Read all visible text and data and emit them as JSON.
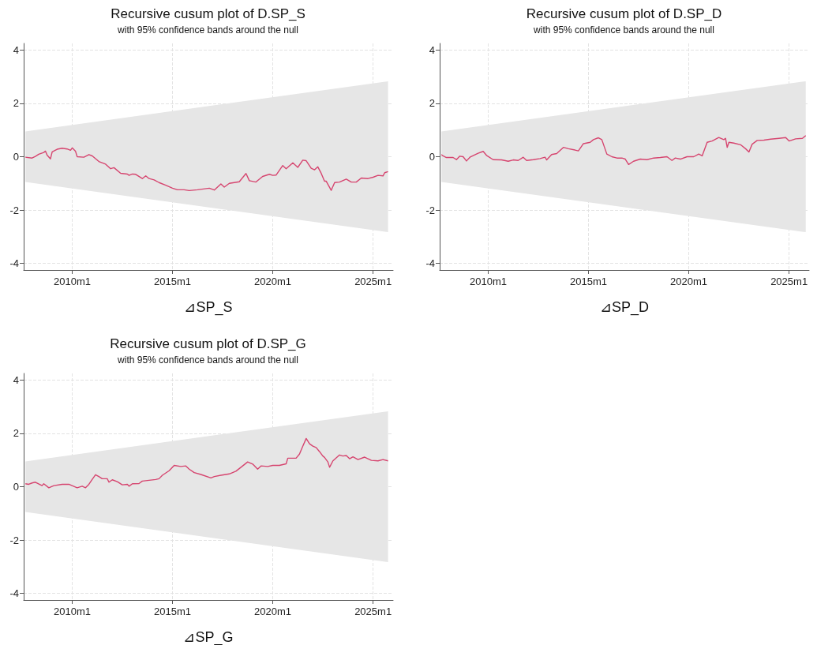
{
  "chart_data": [
    {
      "type": "line",
      "title": "Recursive cusum plot of D.SP_S",
      "subtitle": "with 95% confidence bands around the null",
      "xlabel": "⊿SP_S",
      "xlim": [
        "2007-08",
        "2026-01"
      ],
      "xticks": [
        {
          "value": "2010-01",
          "label": "2010m1"
        },
        {
          "value": "2015-01",
          "label": "2015m1"
        },
        {
          "value": "2020-01",
          "label": "2020m1"
        },
        {
          "value": "2025-01",
          "label": "2025m1"
        }
      ],
      "ylim": [
        -4.25,
        4.25
      ],
      "yticks": [
        -4,
        -2,
        0,
        2,
        4
      ],
      "grid": true,
      "series": [
        {
          "color": "#d6456f",
          "x": [
            "2007-09",
            "2008-01",
            "2008-03",
            "2008-05",
            "2008-08",
            "2008-09",
            "2008-10",
            "2008-12",
            "2009-01",
            "2009-04",
            "2009-07",
            "2009-10",
            "2009-12",
            "2010-01",
            "2010-03",
            "2010-04",
            "2010-08",
            "2010-11",
            "2011-01",
            "2011-05",
            "2011-09",
            "2011-12",
            "2012-02",
            "2012-06",
            "2012-10",
            "2012-11",
            "2013-01",
            "2013-03",
            "2013-07",
            "2013-09",
            "2013-11",
            "2014-02",
            "2014-05",
            "2014-09",
            "2015-01",
            "2015-04",
            "2015-08",
            "2015-11",
            "2016-04",
            "2016-11",
            "2017-02",
            "2017-06",
            "2017-08",
            "2017-11",
            "2018-05",
            "2018-09",
            "2018-11",
            "2019-03",
            "2019-07",
            "2019-11",
            "2020-01",
            "2020-03",
            "2020-07",
            "2020-09",
            "2021-01",
            "2021-04",
            "2021-07",
            "2021-09",
            "2021-12",
            "2022-02",
            "2022-04",
            "2022-06",
            "2022-08",
            "2022-09",
            "2022-12",
            "2023-02",
            "2023-05",
            "2023-09",
            "2023-12",
            "2024-03",
            "2024-06",
            "2024-10",
            "2025-01",
            "2025-04",
            "2025-07",
            "2025-08",
            "2025-10"
          ],
          "values": [
            -0.02,
            -0.05,
            0.01,
            0.09,
            0.16,
            0.21,
            0.06,
            -0.08,
            0.18,
            0.28,
            0.32,
            0.29,
            0.24,
            0.33,
            0.21,
            0.0,
            -0.02,
            0.08,
            0.03,
            -0.18,
            -0.28,
            -0.45,
            -0.41,
            -0.62,
            -0.65,
            -0.7,
            -0.65,
            -0.66,
            -0.82,
            -0.72,
            -0.82,
            -0.87,
            -0.97,
            -1.07,
            -1.18,
            -1.24,
            -1.24,
            -1.27,
            -1.24,
            -1.18,
            -1.25,
            -1.02,
            -1.14,
            -1.0,
            -0.94,
            -0.63,
            -0.9,
            -0.95,
            -0.74,
            -0.66,
            -0.7,
            -0.69,
            -0.33,
            -0.45,
            -0.23,
            -0.4,
            -0.13,
            -0.15,
            -0.43,
            -0.49,
            -0.38,
            -0.62,
            -0.92,
            -0.92,
            -1.26,
            -0.97,
            -0.95,
            -0.84,
            -0.95,
            -0.95,
            -0.8,
            -0.82,
            -0.77,
            -0.7,
            -0.72,
            -0.6,
            -0.56
          ],
          "lower": [
            -0.95,
            null,
            null,
            null,
            null,
            null,
            null,
            null,
            null,
            null,
            null,
            null,
            null,
            null,
            null,
            null,
            null,
            null,
            null,
            null,
            null,
            null,
            null,
            null,
            null,
            null,
            null,
            null,
            null,
            null,
            null,
            null,
            null,
            null,
            null,
            null,
            null,
            null,
            null,
            null,
            null,
            null,
            null,
            null,
            null,
            null,
            null,
            null,
            null,
            null,
            null,
            null,
            null,
            null,
            null,
            null,
            null,
            null,
            null,
            null,
            null,
            null,
            null,
            null,
            null,
            null,
            null,
            null,
            null,
            null,
            null,
            null,
            null,
            null,
            null,
            null,
            -2.83
          ],
          "upper": [
            0.95,
            null,
            null,
            null,
            null,
            null,
            null,
            null,
            null,
            null,
            null,
            null,
            null,
            null,
            null,
            null,
            null,
            null,
            null,
            null,
            null,
            null,
            null,
            null,
            null,
            null,
            null,
            null,
            null,
            null,
            null,
            null,
            null,
            null,
            null,
            null,
            null,
            null,
            null,
            null,
            null,
            null,
            null,
            null,
            null,
            null,
            null,
            null,
            null,
            null,
            null,
            null,
            null,
            null,
            null,
            null,
            null,
            null,
            null,
            null,
            null,
            null,
            null,
            null,
            null,
            null,
            null,
            null,
            null,
            null,
            null,
            null,
            null,
            null,
            null,
            null,
            2.83
          ]
        }
      ]
    },
    {
      "type": "line",
      "title": "Recursive cusum plot of D.SP_D",
      "subtitle": "with 95% confidence bands around the null",
      "xlabel": "⊿SP_D",
      "xlim": [
        "2007-08",
        "2026-01"
      ],
      "xticks": [
        {
          "value": "2010-01",
          "label": "2010m1"
        },
        {
          "value": "2015-01",
          "label": "2015m1"
        },
        {
          "value": "2020-01",
          "label": "2020m1"
        },
        {
          "value": "2025-01",
          "label": "2025m1"
        }
      ],
      "ylim": [
        -4.25,
        4.25
      ],
      "yticks": [
        -4,
        -2,
        0,
        2,
        4
      ],
      "grid": true,
      "series": [
        {
          "color": "#d6456f",
          "x": [
            "2007-09",
            "2007-10",
            "2007-12",
            "2008-04",
            "2008-06",
            "2008-08",
            "2008-10",
            "2008-12",
            "2009-02",
            "2009-04",
            "2009-07",
            "2009-10",
            "2009-12",
            "2010-04",
            "2010-09",
            "2011-01",
            "2011-04",
            "2011-07",
            "2011-10",
            "2011-12",
            "2012-04",
            "2012-08",
            "2012-11",
            "2012-12",
            "2013-03",
            "2013-06",
            "2013-10",
            "2014-01",
            "2014-05",
            "2014-07",
            "2014-10",
            "2015-02",
            "2015-04",
            "2015-07",
            "2015-09",
            "2015-12",
            "2016-03",
            "2016-06",
            "2016-09",
            "2016-11",
            "2017-01",
            "2017-04",
            "2017-08",
            "2017-12",
            "2018-04",
            "2018-08",
            "2018-12",
            "2019-03",
            "2019-05",
            "2019-08",
            "2019-12",
            "2020-04",
            "2020-07",
            "2020-09",
            "2020-12",
            "2021-03",
            "2021-07",
            "2021-10",
            "2021-11",
            "2021-12",
            "2022-01",
            "2022-04",
            "2022-08",
            "2022-11",
            "2023-01",
            "2023-03",
            "2023-06",
            "2023-10",
            "2024-02",
            "2024-07",
            "2024-11",
            "2025-01",
            "2025-05",
            "2025-09",
            "2025-11"
          ],
          "values": [
            0.08,
            0.03,
            -0.03,
            -0.03,
            -0.11,
            0.02,
            0.0,
            -0.16,
            -0.02,
            0.04,
            0.13,
            0.2,
            0.05,
            -0.11,
            -0.12,
            -0.17,
            -0.12,
            -0.14,
            -0.02,
            -0.14,
            -0.11,
            -0.07,
            -0.02,
            -0.12,
            0.08,
            0.12,
            0.35,
            0.3,
            0.25,
            0.22,
            0.49,
            0.54,
            0.64,
            0.71,
            0.64,
            0.1,
            0.0,
            -0.05,
            -0.05,
            -0.09,
            -0.29,
            -0.17,
            -0.09,
            -0.11,
            -0.05,
            -0.03,
            0.0,
            -0.14,
            -0.05,
            -0.09,
            0.0,
            0.0,
            0.1,
            0.03,
            0.54,
            0.59,
            0.72,
            0.64,
            0.69,
            0.35,
            0.54,
            0.51,
            0.45,
            0.3,
            0.18,
            0.47,
            0.61,
            0.62,
            0.66,
            0.69,
            0.72,
            0.59,
            0.67,
            0.69,
            0.79
          ],
          "lower": [
            -0.95,
            null,
            null,
            null,
            null,
            null,
            null,
            null,
            null,
            null,
            null,
            null,
            null,
            null,
            null,
            null,
            null,
            null,
            null,
            null,
            null,
            null,
            null,
            null,
            null,
            null,
            null,
            null,
            null,
            null,
            null,
            null,
            null,
            null,
            null,
            null,
            null,
            null,
            null,
            null,
            null,
            null,
            null,
            null,
            null,
            null,
            null,
            null,
            null,
            null,
            null,
            null,
            null,
            null,
            null,
            null,
            null,
            null,
            null,
            null,
            null,
            null,
            null,
            null,
            null,
            null,
            null,
            null,
            null,
            null,
            null,
            null,
            null,
            null,
            -2.83
          ],
          "upper": [
            0.95,
            null,
            null,
            null,
            null,
            null,
            null,
            null,
            null,
            null,
            null,
            null,
            null,
            null,
            null,
            null,
            null,
            null,
            null,
            null,
            null,
            null,
            null,
            null,
            null,
            null,
            null,
            null,
            null,
            null,
            null,
            null,
            null,
            null,
            null,
            null,
            null,
            null,
            null,
            null,
            null,
            null,
            null,
            null,
            null,
            null,
            null,
            null,
            null,
            null,
            null,
            null,
            null,
            null,
            null,
            null,
            null,
            null,
            null,
            null,
            null,
            null,
            null,
            null,
            null,
            null,
            null,
            null,
            null,
            null,
            null,
            null,
            null,
            null,
            2.83
          ]
        }
      ]
    },
    {
      "type": "line",
      "title": "Recursive cusum plot of D.SP_G",
      "subtitle": "with 95% confidence bands around the null",
      "xlabel": "⊿SP_G",
      "xlim": [
        "2007-08",
        "2026-01"
      ],
      "xticks": [
        {
          "value": "2010-01",
          "label": "2010m1"
        },
        {
          "value": "2015-01",
          "label": "2015m1"
        },
        {
          "value": "2020-01",
          "label": "2020m1"
        },
        {
          "value": "2025-01",
          "label": "2025m1"
        }
      ],
      "ylim": [
        -4.25,
        4.25
      ],
      "yticks": [
        -4,
        -2,
        0,
        2,
        4
      ],
      "grid": true,
      "series": [
        {
          "color": "#d6456f",
          "x": [
            "2007-09",
            "2007-11",
            "2008-01",
            "2008-03",
            "2008-07",
            "2008-08",
            "2008-11",
            "2009-02",
            "2009-07",
            "2009-11",
            "2010-02",
            "2010-04",
            "2010-07",
            "2010-09",
            "2010-11",
            "2011-01",
            "2011-03",
            "2011-05",
            "2011-07",
            "2011-10",
            "2011-11",
            "2012-01",
            "2012-04",
            "2012-07",
            "2012-10",
            "2012-11",
            "2013-01",
            "2013-05",
            "2013-07",
            "2013-11",
            "2014-03",
            "2014-05",
            "2014-07",
            "2014-11",
            "2015-02",
            "2015-06",
            "2015-09",
            "2015-11",
            "2016-02",
            "2016-06",
            "2016-12",
            "2017-02",
            "2017-06",
            "2017-11",
            "2018-03",
            "2018-06",
            "2018-10",
            "2019-01",
            "2019-04",
            "2019-06",
            "2019-10",
            "2020-01",
            "2020-05",
            "2020-09",
            "2020-10",
            "2021-03",
            "2021-05",
            "2021-07",
            "2021-09",
            "2021-11",
            "2022-01",
            "2022-03",
            "2022-05",
            "2022-07",
            "2022-08",
            "2022-10",
            "2022-11",
            "2023-01",
            "2023-05",
            "2023-07",
            "2023-09",
            "2023-11",
            "2024-01",
            "2024-04",
            "2024-08",
            "2024-12",
            "2025-04",
            "2025-07",
            "2025-10"
          ],
          "values": [
            0.11,
            0.09,
            0.14,
            0.17,
            0.04,
            0.11,
            -0.04,
            0.04,
            0.09,
            0.09,
            0.01,
            -0.04,
            0.02,
            -0.04,
            0.09,
            0.28,
            0.45,
            0.38,
            0.3,
            0.3,
            0.17,
            0.26,
            0.19,
            0.07,
            0.09,
            0.02,
            0.11,
            0.12,
            0.21,
            0.24,
            0.27,
            0.3,
            0.43,
            0.6,
            0.8,
            0.76,
            0.78,
            0.66,
            0.53,
            0.46,
            0.33,
            0.38,
            0.43,
            0.48,
            0.58,
            0.73,
            0.93,
            0.85,
            0.66,
            0.78,
            0.76,
            0.8,
            0.8,
            0.86,
            1.07,
            1.07,
            1.22,
            1.52,
            1.81,
            1.61,
            1.52,
            1.47,
            1.32,
            1.15,
            1.1,
            0.93,
            0.73,
            0.97,
            1.19,
            1.15,
            1.17,
            1.05,
            1.12,
            1.02,
            1.11,
            0.99,
            0.97,
            1.02,
            0.97
          ],
          "lower": [
            -0.95,
            null,
            null,
            null,
            null,
            null,
            null,
            null,
            null,
            null,
            null,
            null,
            null,
            null,
            null,
            null,
            null,
            null,
            null,
            null,
            null,
            null,
            null,
            null,
            null,
            null,
            null,
            null,
            null,
            null,
            null,
            null,
            null,
            null,
            null,
            null,
            null,
            null,
            null,
            null,
            null,
            null,
            null,
            null,
            null,
            null,
            null,
            null,
            null,
            null,
            null,
            null,
            null,
            null,
            null,
            null,
            null,
            null,
            null,
            null,
            null,
            null,
            null,
            null,
            null,
            null,
            null,
            null,
            null,
            null,
            null,
            null,
            null,
            null,
            null,
            null,
            null,
            null,
            -2.83
          ],
          "upper": [
            0.95,
            null,
            null,
            null,
            null,
            null,
            null,
            null,
            null,
            null,
            null,
            null,
            null,
            null,
            null,
            null,
            null,
            null,
            null,
            null,
            null,
            null,
            null,
            null,
            null,
            null,
            null,
            null,
            null,
            null,
            null,
            null,
            null,
            null,
            null,
            null,
            null,
            null,
            null,
            null,
            null,
            null,
            null,
            null,
            null,
            null,
            null,
            null,
            null,
            null,
            null,
            null,
            null,
            null,
            null,
            null,
            null,
            null,
            null,
            null,
            null,
            null,
            null,
            null,
            null,
            null,
            null,
            null,
            null,
            null,
            null,
            null,
            null,
            null,
            null,
            null,
            null,
            null,
            2.83
          ]
        }
      ]
    }
  ]
}
